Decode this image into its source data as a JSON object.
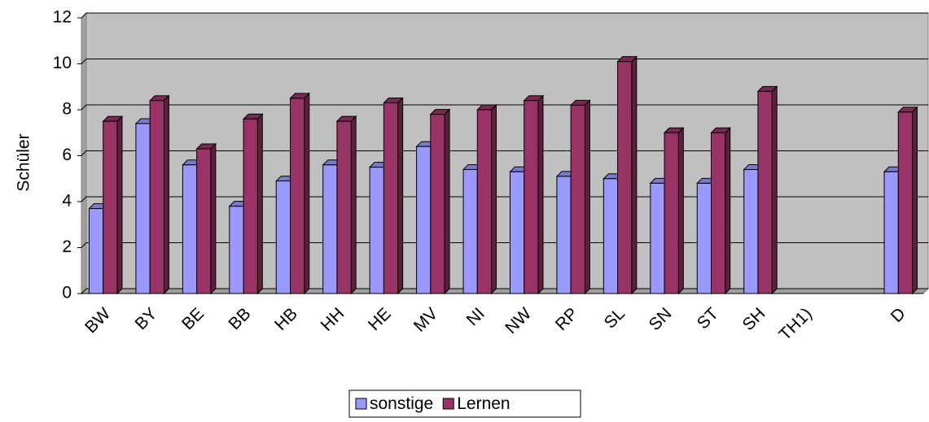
{
  "chart_data": {
    "type": "bar",
    "y_label": "Schüler",
    "categories": [
      "BW",
      "BY",
      "BE",
      "BB",
      "HB",
      "HH",
      "HE",
      "MV",
      "NI",
      "NW",
      "RP",
      "SL",
      "SN",
      "ST",
      "SH",
      "TH1)",
      null,
      "D"
    ],
    "series": [
      {
        "name": "sonstige",
        "color": "#9999ff",
        "values": [
          3.7,
          7.4,
          5.6,
          3.8,
          4.9,
          5.6,
          5.5,
          6.4,
          5.4,
          5.3,
          5.1,
          5.0,
          4.8,
          4.8,
          5.4,
          null,
          null,
          5.3
        ]
      },
      {
        "name": "Lernen",
        "color": "#993366",
        "values": [
          7.5,
          8.4,
          6.3,
          7.6,
          8.5,
          7.5,
          8.3,
          7.8,
          8.0,
          8.4,
          8.2,
          10.1,
          7.0,
          7.0,
          8.8,
          null,
          null,
          7.9
        ]
      }
    ],
    "ylim": [
      0,
      12
    ],
    "yticks": [
      0,
      2,
      4,
      6,
      8,
      10,
      12
    ],
    "grid": true,
    "legend": "bottom"
  }
}
